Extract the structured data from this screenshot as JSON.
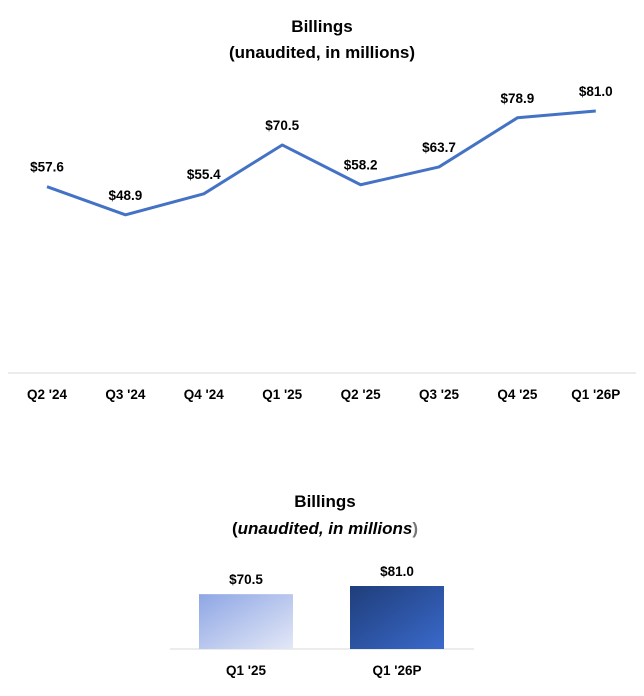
{
  "chart_data": [
    {
      "type": "line",
      "title": "Billings",
      "subtitle": "(unaudited, in millions)",
      "categories": [
        "Q2 '24",
        "Q3 '24",
        "Q4 '24",
        "Q1 '25",
        "Q2 '25",
        "Q3 '25",
        "Q4 '25",
        "Q1 '26P"
      ],
      "values": [
        57.6,
        48.9,
        55.4,
        70.5,
        58.2,
        63.7,
        78.9,
        81.0
      ],
      "data_labels": [
        "$57.6",
        "$48.9",
        "$55.4",
        "$70.5",
        "$58.2",
        "$63.7",
        "$78.9",
        "$81.0"
      ],
      "ylim": [
        0,
        81
      ],
      "grid": false,
      "color": "#4472C4"
    },
    {
      "type": "bar",
      "title": "Billings",
      "subtitle_open": "(",
      "subtitle": "unaudited, in millions",
      "subtitle_close": ")",
      "categories": [
        "Q1 '25",
        "Q1 '26P"
      ],
      "values": [
        70.5,
        81.0
      ],
      "data_labels": [
        "$70.5",
        "$81.0"
      ],
      "ylim": [
        0,
        81
      ],
      "grid": false,
      "colors": [
        [
          "#8EA6E4",
          "#E3E8F7"
        ],
        [
          "#1F3D7A",
          "#3A6ACB"
        ]
      ]
    }
  ]
}
